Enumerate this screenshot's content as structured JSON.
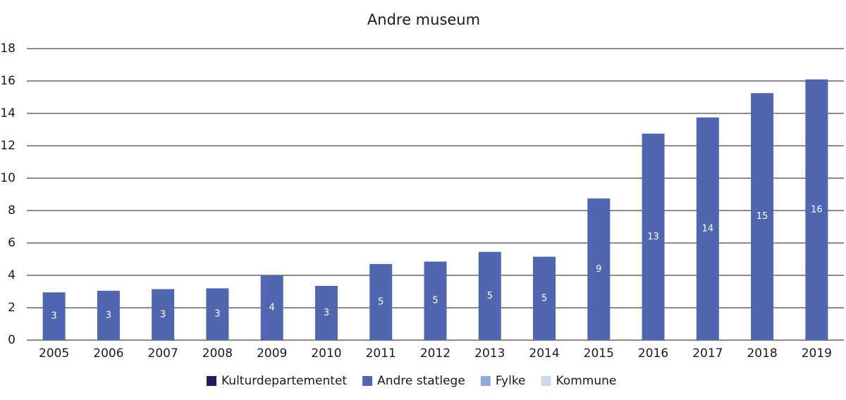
{
  "chart_data": {
    "type": "stacked-bar",
    "title": "Andre museum",
    "categories": [
      "2005",
      "2006",
      "2007",
      "2008",
      "2009",
      "2010",
      "2011",
      "2012",
      "2013",
      "2014",
      "2015",
      "2016",
      "2017",
      "2018",
      "2019"
    ],
    "series": [
      {
        "name": "Kulturdepartementet",
        "color": "#1f1f5e",
        "values": [
          0,
          0,
          0,
          0,
          0,
          0,
          0,
          0,
          0,
          0,
          0,
          0,
          0,
          0,
          0
        ]
      },
      {
        "name": "Andre statlege",
        "color": "#5066b0",
        "values": [
          2.95,
          3.05,
          3.15,
          3.2,
          4.0,
          3.35,
          4.7,
          4.85,
          5.45,
          5.15,
          8.75,
          12.75,
          13.75,
          15.25,
          16.1
        ],
        "value_labels": [
          "3",
          "3",
          "3",
          "3",
          "4",
          "3",
          "5",
          "5",
          "5",
          "5",
          "9",
          "13",
          "14",
          "15",
          "16"
        ]
      },
      {
        "name": "Fylke",
        "color": "#8fa9dc",
        "values": [
          0,
          0,
          0,
          0,
          0,
          0,
          0,
          0,
          0,
          0,
          0,
          0,
          0,
          0,
          0
        ]
      },
      {
        "name": "Kommune",
        "color": "#cdd7ef",
        "values": [
          0,
          0,
          0,
          0,
          0,
          0,
          0,
          0,
          0,
          0,
          0,
          0,
          0,
          0,
          0
        ]
      }
    ],
    "ylim": [
      0,
      18
    ],
    "yticks": [
      0,
      2,
      4,
      6,
      8,
      10,
      12,
      14,
      16,
      18
    ],
    "grid": true
  }
}
